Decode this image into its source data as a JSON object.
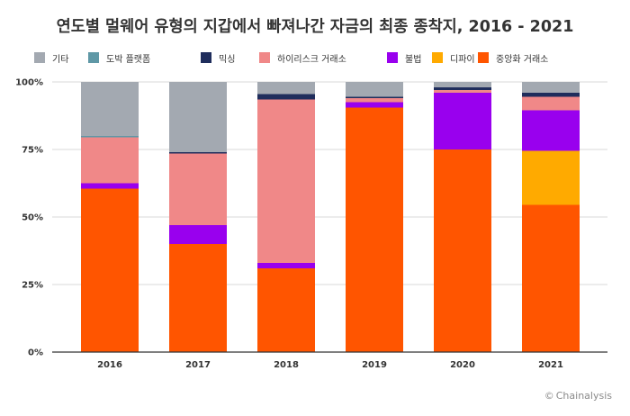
{
  "chart_data": {
    "type": "bar",
    "stacked": true,
    "title": "연도별 멀웨어 유형의 지갑에서 빠져나간 자금의 최종 종착지, 2016 - 2021",
    "xlabel": "",
    "ylabel": "",
    "categories": [
      "2016",
      "2017",
      "2018",
      "2019",
      "2020",
      "2021"
    ],
    "ylim": [
      0,
      100
    ],
    "yticks": [
      "0%",
      "25%",
      "50%",
      "75%",
      "100%"
    ],
    "grid": "horizontal",
    "legend_position": "top",
    "series": [
      {
        "name": "중앙화 거래소",
        "color": "#ff5500",
        "values": [
          60.5,
          40,
          31,
          90.5,
          75,
          54.5
        ]
      },
      {
        "name": "디파이",
        "color": "#ffaa00",
        "values": [
          0,
          0,
          0,
          0,
          0,
          20
        ]
      },
      {
        "name": "불법",
        "color": "#9900ee",
        "values": [
          2,
          7,
          2,
          2,
          21,
          15
        ]
      },
      {
        "name": "하이리스크 거래소",
        "color": "#f08888",
        "values": [
          17,
          26.5,
          60.5,
          1.5,
          1,
          5
        ]
      },
      {
        "name": "믹싱",
        "color": "#1f2d5c",
        "values": [
          0,
          0.5,
          2,
          0.5,
          1,
          1.5
        ]
      },
      {
        "name": "도박 플랫폼",
        "color": "#5f98a6",
        "values": [
          0.5,
          0,
          0,
          0,
          0,
          0
        ]
      },
      {
        "name": "기타",
        "color": "#a3a9b1",
        "values": [
          20,
          26,
          4.5,
          5.5,
          2,
          4
        ]
      }
    ],
    "legend_order": [
      "기타",
      "도박 플랫폼",
      "믹싱",
      "하이리스크 거래소",
      "불법",
      "디파이",
      "중앙화 거래소"
    ]
  },
  "source_credit": {
    "symbol": "©",
    "text": "Chainalysis"
  }
}
